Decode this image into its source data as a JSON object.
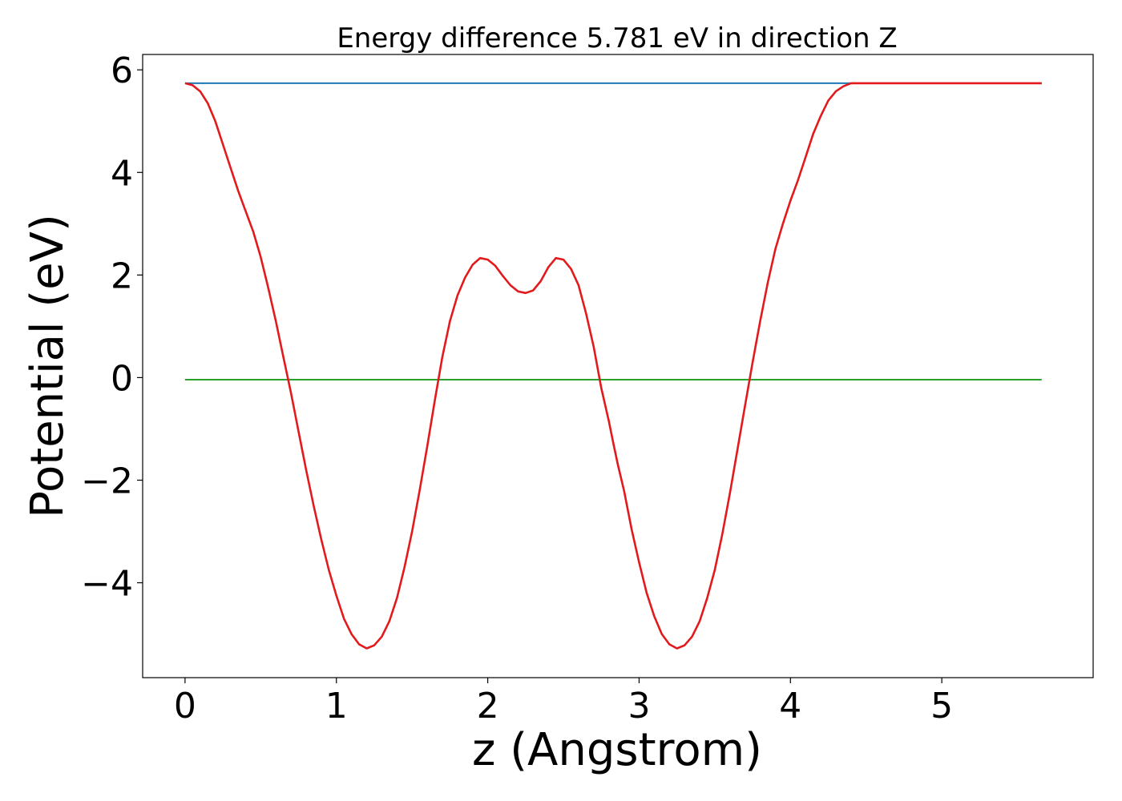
{
  "chart_data": {
    "type": "line",
    "title": "Energy difference 5.781 eV in direction Z",
    "xlabel": "z (Angstrom)",
    "ylabel": "Potential (eV)",
    "xlim": [
      -0.28,
      6.0
    ],
    "ylim": [
      -5.85,
      6.3
    ],
    "xticks": [
      0,
      1,
      2,
      3,
      4,
      5
    ],
    "xtick_labels": [
      "0",
      "1",
      "2",
      "3",
      "4",
      "5"
    ],
    "yticks": [
      6,
      4,
      2,
      0,
      -2,
      -4
    ],
    "ytick_labels": [
      "6",
      "4",
      "2",
      "0",
      "−2",
      "−4"
    ],
    "grid": false,
    "series": [
      {
        "color": "#1f77b4",
        "x": [
          0.0,
          5.66
        ],
        "y": [
          5.74,
          5.74
        ]
      },
      {
        "color": "#2ca02c",
        "x": [
          0.0,
          5.66
        ],
        "y": [
          -0.04,
          -0.04
        ]
      },
      {
        "color": "#e31a1c",
        "x": [
          0.0,
          0.05,
          0.1,
          0.15,
          0.2,
          0.25,
          0.3,
          0.35,
          0.4,
          0.45,
          0.5,
          0.55,
          0.6,
          0.65,
          0.7,
          0.75,
          0.8,
          0.85,
          0.9,
          0.95,
          1.0,
          1.05,
          1.1,
          1.15,
          1.2,
          1.25,
          1.3,
          1.35,
          1.4,
          1.45,
          1.5,
          1.55,
          1.6,
          1.65,
          1.7,
          1.75,
          1.8,
          1.85,
          1.9,
          1.95,
          2.0,
          2.05,
          2.1,
          2.15,
          2.2,
          2.25,
          2.3,
          2.35,
          2.4,
          2.45,
          2.5,
          2.55,
          2.6,
          2.65,
          2.7,
          2.75,
          2.8,
          2.83,
          2.86,
          2.9,
          2.95,
          3.0,
          3.05,
          3.1,
          3.15,
          3.2,
          3.25,
          3.3,
          3.35,
          3.4,
          3.45,
          3.5,
          3.55,
          3.6,
          3.65,
          3.7,
          3.75,
          3.8,
          3.85,
          3.9,
          3.95,
          4.0,
          4.05,
          4.1,
          4.15,
          4.2,
          4.25,
          4.3,
          4.35,
          4.4,
          4.45,
          4.5,
          4.55,
          4.6,
          4.65,
          4.7,
          4.75,
          4.8,
          4.85,
          4.9,
          4.95,
          5.0,
          5.05,
          5.1,
          5.15,
          5.2,
          5.25,
          5.3,
          5.35,
          5.4,
          5.45,
          5.5,
          5.55,
          5.6,
          5.66
        ],
        "y": [
          5.74,
          5.7,
          5.58,
          5.35,
          5.0,
          4.55,
          4.1,
          3.65,
          3.25,
          2.85,
          2.35,
          1.75,
          1.1,
          0.4,
          -0.3,
          -1.05,
          -1.8,
          -2.5,
          -3.15,
          -3.75,
          -4.25,
          -4.7,
          -5.0,
          -5.2,
          -5.28,
          -5.22,
          -5.05,
          -4.75,
          -4.3,
          -3.7,
          -3.0,
          -2.2,
          -1.35,
          -0.45,
          0.4,
          1.1,
          1.6,
          1.95,
          2.2,
          2.33,
          2.3,
          2.18,
          1.98,
          1.8,
          1.68,
          1.65,
          1.7,
          1.88,
          2.15,
          2.33,
          2.3,
          2.12,
          1.8,
          1.25,
          0.6,
          -0.2,
          -0.85,
          -1.28,
          -1.7,
          -2.2,
          -2.95,
          -3.6,
          -4.2,
          -4.65,
          -5.0,
          -5.2,
          -5.28,
          -5.22,
          -5.05,
          -4.75,
          -4.3,
          -3.75,
          -3.05,
          -2.25,
          -1.4,
          -0.55,
          0.3,
          1.1,
          1.85,
          2.5,
          3.0,
          3.45,
          3.85,
          4.3,
          4.75,
          5.1,
          5.4,
          5.58,
          5.68,
          5.74,
          5.74,
          5.74,
          5.74,
          5.74,
          5.74,
          5.74,
          5.74,
          5.74,
          5.74,
          5.74,
          5.74,
          5.74,
          5.74,
          5.74,
          5.74,
          5.74,
          5.74,
          5.74,
          5.74,
          5.74,
          5.74,
          5.74,
          5.74,
          5.74,
          5.74
        ]
      }
    ]
  }
}
